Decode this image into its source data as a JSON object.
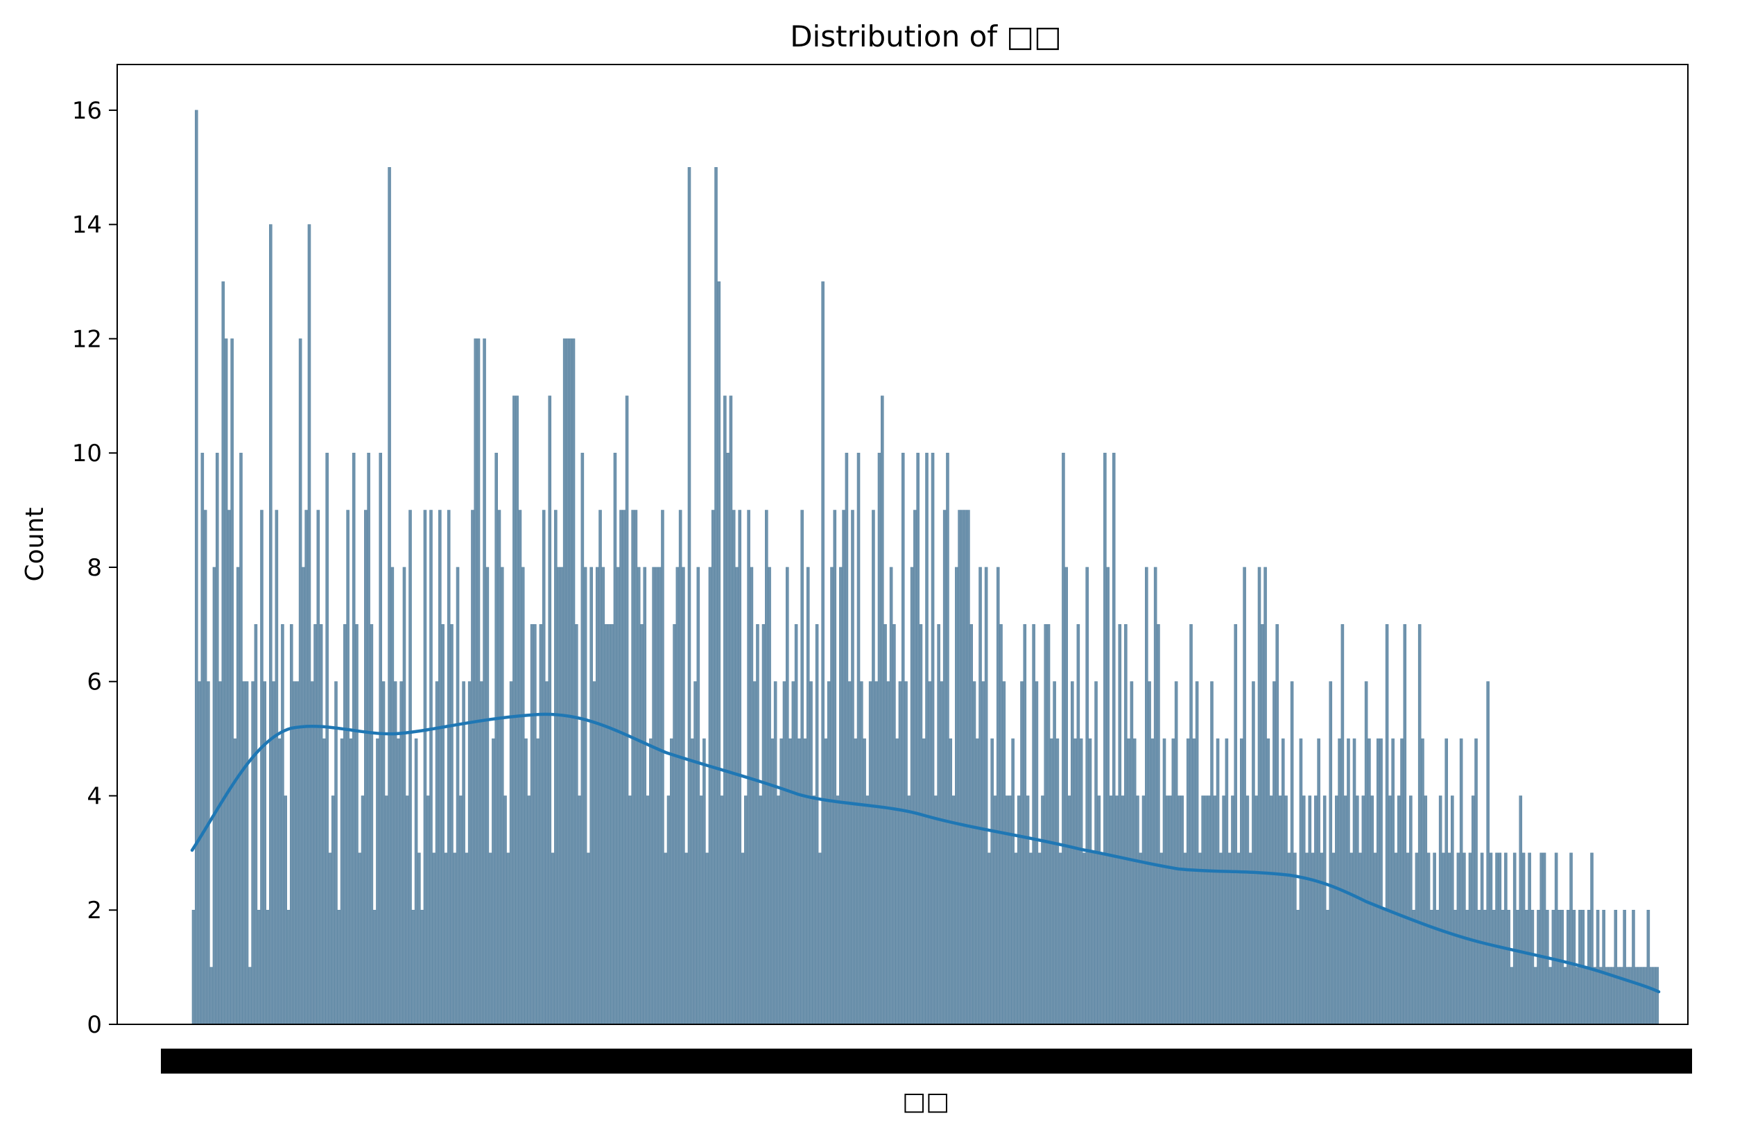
{
  "chart_data": {
    "type": "bar",
    "title": "Distribution of □□",
    "xlabel": "□□",
    "ylabel": "Count",
    "ylim": [
      0,
      16.8
    ],
    "yticks": [
      0,
      2,
      4,
      6,
      8,
      10,
      12,
      14,
      16
    ],
    "grid": false,
    "legend": "none",
    "colors": {
      "bar_fill": "#6f93ad",
      "bar_edge": "#5f88a5",
      "kde_line": "#1f77b4",
      "tick_band": "#000000"
    },
    "x_tick_labels_note": "x-axis tick labels are dense and overlapping; rendered as a solid black band",
    "values": [
      2,
      16,
      6,
      10,
      9,
      6,
      1,
      8,
      10,
      6,
      13,
      12,
      9,
      12,
      5,
      8,
      10,
      6,
      6,
      1,
      6,
      7,
      2,
      9,
      6,
      2,
      14,
      6,
      9,
      5,
      7,
      4,
      2,
      7,
      6,
      6,
      12,
      8,
      9,
      14,
      6,
      7,
      9,
      7,
      5,
      10,
      3,
      4,
      6,
      2,
      5,
      7,
      9,
      5,
      10,
      7,
      3,
      4,
      9,
      10,
      7,
      2,
      5,
      10,
      6,
      4,
      15,
      8,
      6,
      5,
      6,
      8,
      4,
      9,
      2,
      5,
      3,
      2,
      9,
      4,
      9,
      3,
      6,
      9,
      7,
      3,
      9,
      7,
      3,
      8,
      4,
      6,
      3,
      6,
      9,
      12,
      12,
      6,
      12,
      8,
      3,
      5,
      10,
      9,
      8,
      4,
      3,
      6,
      11,
      11,
      9,
      8,
      5,
      4,
      7,
      7,
      5,
      7,
      9,
      6,
      11,
      3,
      9,
      8,
      8,
      12,
      12,
      12,
      12,
      7,
      4,
      10,
      8,
      3,
      8,
      6,
      8,
      9,
      8,
      7,
      7,
      7,
      10,
      8,
      9,
      9,
      11,
      4,
      9,
      9,
      8,
      7,
      8,
      4,
      5,
      8,
      8,
      8,
      9,
      3,
      4,
      5,
      7,
      8,
      9,
      8,
      3,
      15,
      5,
      6,
      8,
      4,
      5,
      3,
      8,
      9,
      15,
      13,
      4,
      11,
      10,
      11,
      9,
      8,
      9,
      3,
      4,
      9,
      8,
      6,
      7,
      4,
      7,
      9,
      8,
      5,
      6,
      4,
      5,
      6,
      8,
      5,
      6,
      7,
      5,
      9,
      5,
      8,
      6,
      4,
      7,
      3,
      13,
      5,
      6,
      8,
      9,
      4,
      8,
      9,
      10,
      6,
      9,
      5,
      10,
      6,
      5,
      4,
      6,
      9,
      6,
      10,
      11,
      7,
      6,
      8,
      7,
      5,
      6,
      10,
      6,
      4,
      8,
      9,
      10,
      7,
      5,
      10,
      6,
      10,
      4,
      7,
      6,
      9,
      10,
      5,
      4,
      8,
      9,
      9,
      9,
      9,
      7,
      6,
      5,
      8,
      6,
      8,
      3,
      5,
      4,
      8,
      7,
      6,
      4,
      4,
      5,
      3,
      4,
      6,
      7,
      4,
      3,
      7,
      6,
      3,
      4,
      7,
      7,
      5,
      6,
      5,
      3,
      10,
      8,
      4,
      6,
      5,
      7,
      5,
      3,
      8,
      5,
      3,
      6,
      4,
      3,
      10,
      8,
      4,
      10,
      4,
      7,
      4,
      7,
      5,
      6,
      5,
      4,
      3,
      4,
      8,
      6,
      5,
      8,
      7,
      3,
      5,
      4,
      4,
      5,
      6,
      4,
      4,
      3,
      5,
      7,
      5,
      6,
      3,
      4,
      4,
      4,
      6,
      4,
      5,
      3,
      4,
      5,
      3,
      4,
      7,
      3,
      5,
      8,
      4,
      3,
      6,
      4,
      8,
      7,
      8,
      5,
      4,
      6,
      7,
      4,
      5,
      4,
      3,
      6,
      3,
      2,
      5,
      4,
      3,
      4,
      3,
      4,
      5,
      3,
      4,
      2,
      6,
      3,
      4,
      5,
      7,
      4,
      5,
      3,
      5,
      4,
      3,
      4,
      6,
      5,
      4,
      3,
      5,
      5,
      2,
      7,
      4,
      5,
      3,
      4,
      5,
      7,
      3,
      4,
      2,
      3,
      7,
      5,
      4,
      3,
      2,
      3,
      2,
      4,
      3,
      5,
      3,
      4,
      2,
      3,
      5,
      3,
      2,
      3,
      4,
      5,
      2,
      3,
      2,
      6,
      3,
      2,
      3,
      3,
      2,
      3,
      2,
      1,
      3,
      2,
      4,
      3,
      2,
      3,
      2,
      1,
      2,
      3,
      3,
      2,
      1,
      2,
      3,
      2,
      2,
      1,
      2,
      3,
      2,
      1,
      2,
      2,
      1,
      2,
      3,
      1,
      2,
      1,
      2,
      1,
      1,
      1,
      2,
      1,
      1,
      2,
      1,
      1,
      2,
      1,
      1,
      1,
      1,
      2,
      1,
      1,
      1
    ]
  }
}
